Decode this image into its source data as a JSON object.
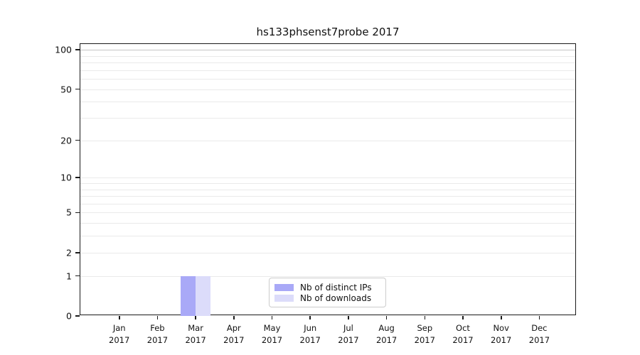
{
  "title": "hs133phsenst7probe 2017",
  "colors": {
    "distinct_ips": "#a9a9f7",
    "downloads": "#dcdcfa",
    "grid_minor": "#eaeaea",
    "grid_hundred": "#c6c6c6",
    "axis": "#1a1a1a"
  },
  "legend": {
    "items": [
      {
        "label": "Nb of distinct IPs",
        "color_key": "distinct_ips"
      },
      {
        "label": "Nb of downloads",
        "color_key": "downloads"
      }
    ]
  },
  "chart_data": {
    "type": "bar",
    "title": "hs133phsenst7probe 2017",
    "categories": [
      "Jan 2017",
      "Feb 2017",
      "Mar 2017",
      "Apr 2017",
      "May 2017",
      "Jun 2017",
      "Jul 2017",
      "Aug 2017",
      "Sep 2017",
      "Oct 2017",
      "Nov 2017",
      "Dec 2017"
    ],
    "month_labels": [
      "Jan",
      "Feb",
      "Mar",
      "Apr",
      "May",
      "Jun",
      "Jul",
      "Aug",
      "Sep",
      "Oct",
      "Nov",
      "Dec"
    ],
    "year_label": "2017",
    "series": [
      {
        "name": "Nb of distinct IPs",
        "color_key": "distinct_ips",
        "values": [
          0,
          0,
          1,
          0,
          0,
          0,
          0,
          0,
          0,
          0,
          0,
          0
        ]
      },
      {
        "name": "Nb of downloads",
        "color_key": "downloads",
        "values": [
          0,
          0,
          1,
          0,
          0,
          0,
          0,
          0,
          0,
          0,
          0,
          0
        ]
      }
    ],
    "yscale": "log1p",
    "ylim": [
      0,
      110
    ],
    "yticks_labeled": [
      0,
      1,
      2,
      5,
      10,
      20,
      50,
      100
    ],
    "yticks_minor": [
      3,
      4,
      6,
      7,
      8,
      9,
      30,
      40,
      60,
      70,
      80,
      90
    ],
    "grid": true,
    "legend_position": "inside-bottom-center"
  }
}
